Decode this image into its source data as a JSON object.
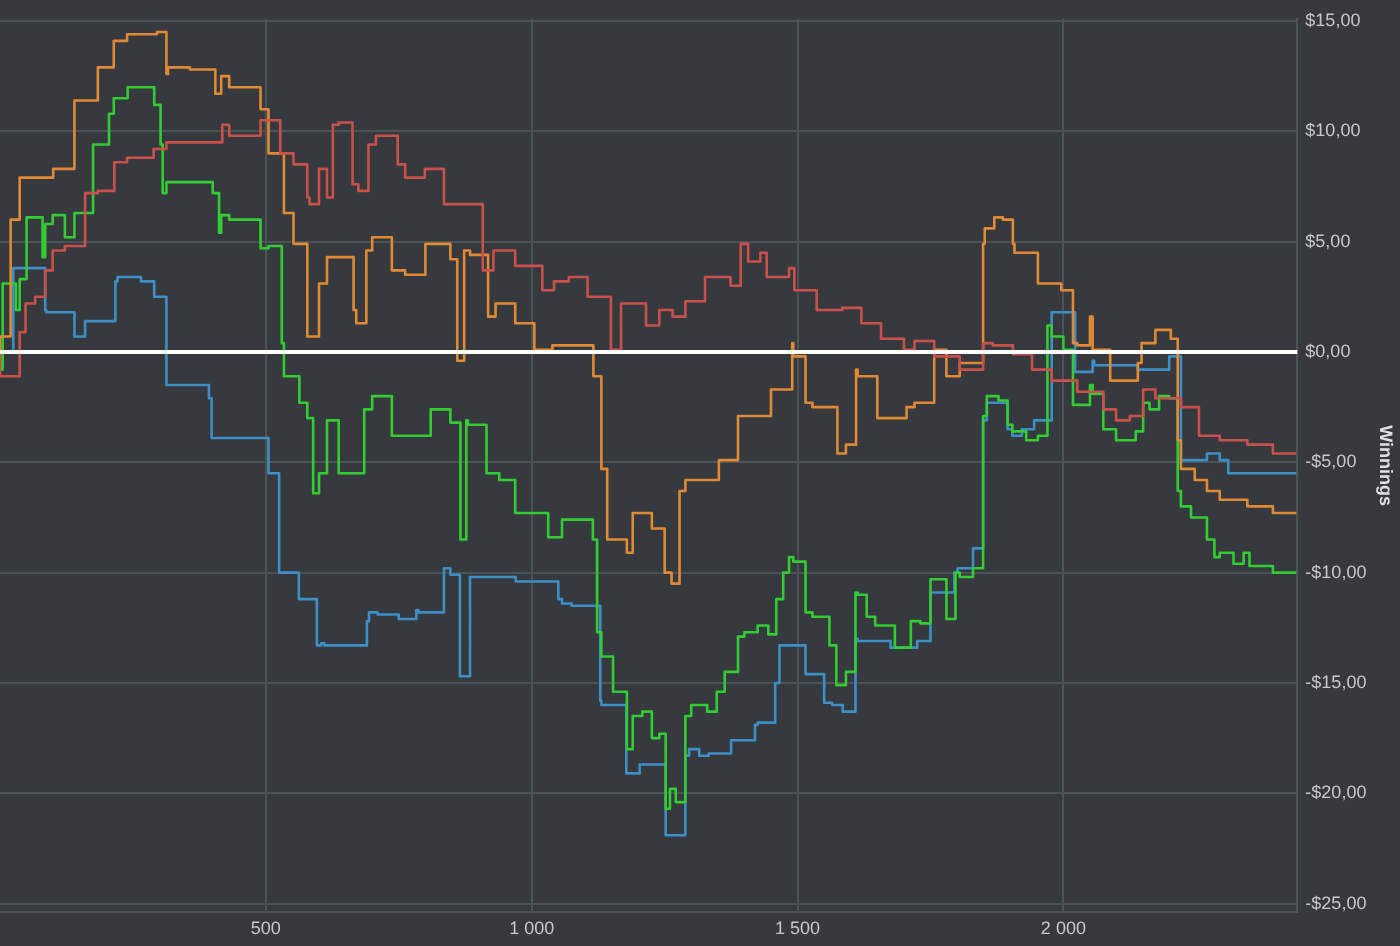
{
  "chart_data": {
    "type": "step",
    "ylabel": "Winnings",
    "xlim": [
      0,
      2440
    ],
    "xticks": [
      500,
      {
        "value": 1000,
        "label": "1 000"
      },
      {
        "value": 1500,
        "label": "1 500"
      },
      {
        "value": 2000,
        "label": "2 000"
      }
    ],
    "ylim": [
      -25.4,
      15.1
    ],
    "yticks": [
      {
        "value": 15,
        "label": "$15,00"
      },
      {
        "value": 10,
        "label": "$10,00"
      },
      {
        "value": 5,
        "label": "$5,00"
      },
      {
        "value": 0,
        "label": "$0,00"
      },
      {
        "value": -5,
        "label": "-$5,00"
      },
      {
        "value": -10,
        "label": "-$10,00"
      },
      {
        "value": -15,
        "label": "-$15,00"
      },
      {
        "value": -20,
        "label": "-$20,00"
      },
      {
        "value": -25,
        "label": "-$25,00"
      }
    ],
    "grid": true,
    "legend": false,
    "ref_lines": [
      {
        "axis": "y",
        "value": 0,
        "color": "#ffffff"
      }
    ],
    "series": [
      {
        "color": "#c9504b",
        "x": [
          0,
          37,
          48,
          66,
          85,
          99,
          122,
          160,
          184,
          215,
          239,
          289,
          313,
          368,
          418,
          431,
          490,
          527,
          552,
          578,
          582,
          600,
          615,
          626,
          637,
          663,
          674,
          693,
          707,
          748,
          762,
          799,
          835,
          858,
          908,
          928,
          969,
          1020,
          1042,
          1070,
          1105,
          1149,
          1168,
          1215,
          1240,
          1265,
          1289,
          1326,
          1374,
          1393,
          1407,
          1430,
          1442,
          1484,
          1494,
          1536,
          1584,
          1620,
          1657,
          1700,
          1720,
          1757,
          1805,
          1849,
          1867,
          1905,
          1941,
          1978,
          2026,
          2075,
          2099,
          2125,
          2150,
          2173,
          2221,
          2255,
          2294,
          2346,
          2394,
          2438
        ],
        "values": [
          0,
          -1.1,
          0.9,
          2.2,
          2.5,
          3.7,
          4.6,
          4.8,
          7.2,
          7.3,
          8.6,
          8.8,
          9.2,
          9.5,
          9.5,
          10.3,
          9.8,
          10.5,
          9.0,
          8.5,
          7.0,
          6.7,
          8.3,
          7.0,
          10.3,
          10.4,
          7.6,
          7.3,
          9.4,
          9.8,
          8.5,
          7.9,
          8.3,
          6.7,
          6.7,
          3.7,
          4.6,
          3.9,
          2.8,
          3.2,
          3.4,
          2.5,
          0.1,
          2.2,
          1.2,
          1.9,
          1.6,
          2.3,
          3.4,
          3.0,
          4.9,
          4.1,
          4.5,
          3.4,
          3.8,
          2.8,
          1.9,
          2.0,
          1.3,
          0.6,
          0.1,
          0.5,
          -0.2,
          -0.8,
          0.4,
          0.3,
          -0.1,
          -0.8,
          -1.3,
          -1.8,
          -2.6,
          -3.1,
          -2.9,
          -1.7,
          -2.1,
          -2.5,
          -3.8,
          -4.0,
          -4.2,
          -4.6
        ]
      },
      {
        "color": "#e08a35",
        "x": [
          0,
          20,
          37,
          100,
          140,
          184,
          214,
          239,
          295,
          313,
          316,
          357,
          405,
          416,
          431,
          490,
          505,
          534,
          552,
          578,
          600,
          615,
          637,
          665,
          670,
          689,
          700,
          737,
          762,
          800,
          847,
          860,
          873,
          884,
          918,
          932,
          969,
          1005,
          1039,
          1080,
          1116,
          1131,
          1142,
          1179,
          1190,
          1226,
          1250,
          1263,
          1278,
          1289,
          1352,
          1388,
          1411,
          1450,
          1466,
          1490,
          1492,
          1515,
          1528,
          1575,
          1591,
          1610,
          1613,
          1650,
          1705,
          1720,
          1757,
          1760,
          1780,
          1805,
          1849,
          1852,
          1870,
          1886,
          1905,
          1908,
          1952,
          1996,
          2018,
          2026,
          2050,
          2055,
          2088,
          2099,
          2140,
          2147,
          2173,
          2202,
          2215,
          2221,
          2247,
          2270,
          2294,
          2346,
          2394,
          2438
        ],
        "values": [
          0,
          0.7,
          6,
          7.9,
          8.3,
          11.4,
          12.9,
          14.1,
          14.4,
          14.5,
          12.6,
          12.9,
          12.8,
          11.7,
          12.5,
          12,
          11,
          9,
          6.3,
          4.9,
          0.7,
          3.1,
          4.3,
          4.3,
          1.9,
          1.3,
          4.6,
          5.2,
          3.7,
          3.5,
          4.9,
          4.2,
          -0.4,
          4.6,
          4.4,
          1.6,
          2.2,
          1.3,
          0.1,
          0.3,
          0.3,
          -1.1,
          -5.3,
          -8.5,
          -9.1,
          -7.3,
          -8,
          -10,
          -10.5,
          -6.3,
          -5.8,
          -4.9,
          -2.9,
          -2.9,
          -1.7,
          -1.7,
          0.4,
          -0.2,
          -2.3,
          -2.5,
          -4.6,
          -4.2,
          -0.8,
          -1.1,
          -3.0,
          -2.5,
          -2.3,
          0.1,
          0.1,
          -1.1,
          -0.5,
          4.9,
          5.6,
          6.1,
          6,
          4.9,
          4.5,
          3.1,
          2.8,
          0.4,
          0.3,
          1.6,
          0.1,
          -1.3,
          -1.3,
          -0.5,
          0.4,
          1.0,
          0.6,
          -4.0,
          -5.3,
          -5.8,
          -6.3,
          -6.7,
          -7.0,
          -7.3
        ]
      },
      {
        "color": "#33cc33",
        "x": [
          0,
          5,
          15,
          30,
          37,
          50,
          63,
          80,
          85,
          99,
          122,
          140,
          155,
          175,
          184,
          205,
          214,
          240,
          247,
          290,
          302,
          306,
          313,
          343,
          400,
          412,
          416,
          431,
          490,
          505,
          530,
          534,
          563,
          578,
          589,
          600,
          615,
          637,
          663,
          685,
          700,
          737,
          762,
          810,
          847,
          866,
          877,
          880,
          915,
          939,
          969,
          1031,
          1057,
          1079,
          1115,
          1123,
          1131,
          1153,
          1179,
          1190,
          1208,
          1226,
          1240,
          1252,
          1260,
          1271,
          1289,
          1300,
          1330,
          1348,
          1363,
          1388,
          1400,
          1425,
          1445,
          1460,
          1473,
          1484,
          1492,
          1515,
          1528,
          1560,
          1573,
          1591,
          1609,
          1613,
          1630,
          1646,
          1683,
          1713,
          1731,
          1750,
          1757,
          1780,
          1797,
          1805,
          1830,
          1849,
          1856,
          1878,
          1895,
          1904,
          1930,
          1952,
          1970,
          1978,
          2000,
          2018,
          2022,
          2050,
          2055,
          2075,
          2099,
          2136,
          2150,
          2162,
          2180,
          2199,
          2215,
          2221,
          2240,
          2270,
          2284,
          2294,
          2320,
          2339,
          2350,
          2394,
          2438
        ],
        "values": [
          0,
          -0.8,
          3.1,
          3.1,
          1.9,
          3.3,
          6.1,
          6.1,
          4.3,
          5.8,
          6.2,
          5.2,
          6.3,
          6.3,
          9.4,
          9.4,
          10.8,
          11.5,
          12.0,
          12.0,
          11.2,
          9.4,
          7.2,
          7.7,
          7.7,
          7.2,
          5.4,
          6.2,
          6.0,
          4.7,
          4.8,
          0.4,
          -1.1,
          -2.3,
          -3.0,
          -6.4,
          -5.5,
          -3.1,
          -5.5,
          -5.5,
          -2.6,
          -2.0,
          -3.8,
          -3.8,
          -2.6,
          -3.2,
          -8.5,
          -3.1,
          -3.3,
          -5.5,
          -5.8,
          -7.3,
          -8.4,
          -7.6,
          -7.6,
          -8.5,
          -12.7,
          -13.8,
          -15.4,
          -18.0,
          -16.5,
          -16.3,
          -17.5,
          -17.3,
          -20.7,
          -19.8,
          -20.4,
          -16.5,
          -16.0,
          -16.3,
          -15.4,
          -14.5,
          -12.9,
          -12.7,
          -12.4,
          -12.8,
          -11.2,
          -10.0,
          -9.3,
          -9.5,
          -11.8,
          -12.0,
          -13.3,
          -15.1,
          -14.5,
          -10.9,
          -11.0,
          -12.0,
          -12.4,
          -13.4,
          -12.2,
          -12.3,
          -10.3,
          -10.3,
          -12.1,
          -10.0,
          -10.2,
          -9.8,
          -2.9,
          -2.0,
          -2.2,
          -3.3,
          -3.6,
          -4.0,
          -3.8,
          1.2,
          0.7,
          0.1,
          -2.4,
          -2.4,
          -1.5,
          -1.9,
          -3.5,
          -4.0,
          -3.6,
          -2.3,
          -2.6,
          -2.0,
          -2.1,
          -6.3,
          -7.0,
          -7.5,
          -8.5,
          -9.3,
          -9.1,
          -9.6,
          -9.1,
          -9.7,
          -10.0
        ]
      },
      {
        "color": "#3d8fc6",
        "x": [
          0,
          25,
          30,
          85,
          87,
          140,
          142,
          160,
          165,
          217,
          221,
          265,
          290,
          302,
          313,
          317,
          393,
          398,
          412,
          505,
          508,
          525,
          530,
          562,
          567,
          596,
          604,
          610,
          620,
          690,
          694,
          710,
          750,
          757,
          783,
          787,
          835,
          847,
          865,
          872,
          884,
          888,
          970,
          982,
          1050,
          1057,
          1075,
          1129,
          1131,
          1178,
          1186,
          1203,
          1208,
          1252,
          1259,
          1289,
          1296,
          1315,
          1333,
          1375,
          1388,
          1420,
          1425,
          1458,
          1466,
          1484,
          1515,
          1521,
          1550,
          1565,
          1585,
          1591,
          1609,
          1613,
          1675,
          1683,
          1725,
          1731,
          1750,
          1757,
          1795,
          1801,
          1830,
          1849,
          1856,
          1878,
          1895,
          1904,
          1922,
          1945,
          1978,
          1980,
          2022,
          2026,
          2055,
          2058,
          2140,
          2199,
          2202,
          2221,
          2228,
          2270,
          2294,
          2310,
          2350,
          2438
        ],
        "values": [
          0,
          0,
          3.8,
          3.8,
          1.9,
          1.8,
          0.7,
          0.7,
          1.4,
          1.4,
          3.2,
          3.4,
          3.2,
          2.5,
          2.5,
          -1.5,
          -1.5,
          -2.1,
          -3.9,
          -3.9,
          -5.5,
          -5.5,
          -10.0,
          -10.0,
          -11.2,
          -11.2,
          -13.3,
          -13.2,
          -13.3,
          -13.3,
          -12.2,
          -11.8,
          -11.9,
          -12.1,
          -12.1,
          -11.7,
          -11.8,
          -9.8,
          -10.1,
          -14.7,
          -14.7,
          -10.2,
          -10.2,
          -10.4,
          -10.4,
          -11.2,
          -11.4,
          -11.5,
          -15.8,
          -16.0,
          -19.1,
          -19.1,
          -18.7,
          -18.7,
          -21.9,
          -21.9,
          -18.3,
          -18.0,
          -18.3,
          -18.2,
          -17.6,
          -17.6,
          -16.9,
          -16.8,
          -15.0,
          -13.3,
          -13.3,
          -14.6,
          -14.6,
          -15.9,
          -16.0,
          -16.3,
          -16.3,
          -13.0,
          -13.1,
          -13.4,
          -13.4,
          -13.1,
          -13.1,
          -10.9,
          -10.9,
          -10.0,
          -9.8,
          -8.9,
          -3.1,
          -2.3,
          -2.3,
          -3.5,
          -3.8,
          -3.5,
          -3.1,
          1.8,
          1.8,
          -0.9,
          -0.9,
          -0.4,
          -0.6,
          -0.8,
          -0.2,
          -0.2,
          -4.9,
          -4.9,
          -4.6,
          -4.9,
          -5.5,
          -5.5
        ]
      }
    ]
  }
}
